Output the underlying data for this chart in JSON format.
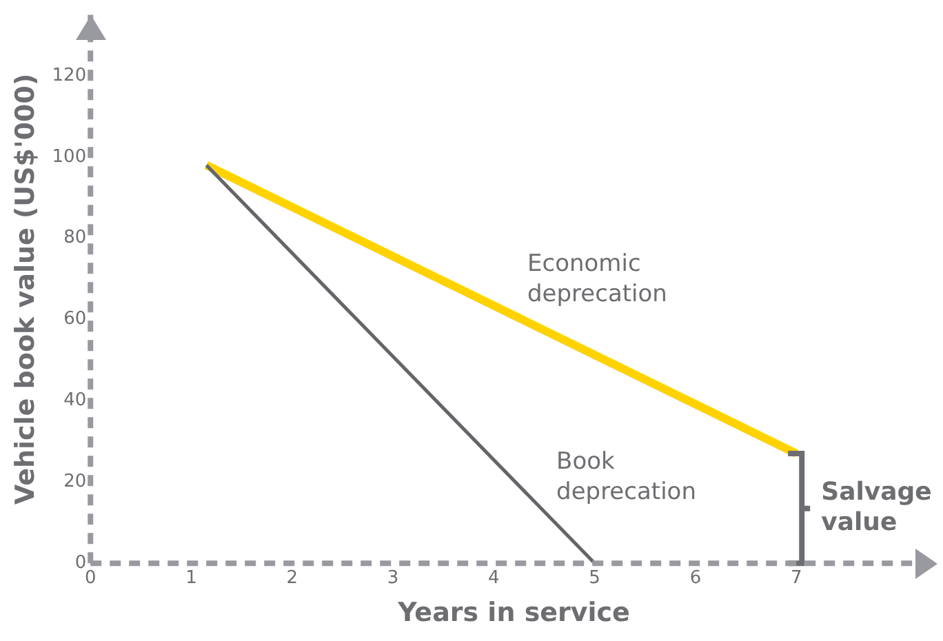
{
  "chart_data": {
    "type": "line",
    "xlabel": "Years in service",
    "ylabel": "Vehicle book value (US$'000)",
    "xlim": [
      0,
      8.4
    ],
    "xticks": [
      0,
      1,
      2,
      3,
      4,
      5,
      6,
      7
    ],
    "ylim": [
      0,
      135
    ],
    "yticks": [
      0,
      20,
      40,
      60,
      80,
      100,
      120
    ],
    "grid": false,
    "legend": false,
    "marker": "none",
    "line_style": "solid",
    "series": [
      {
        "name": "Economic deprecation",
        "color": "#ffd200",
        "x": [
          1.15,
          7
        ],
        "values": [
          98,
          27
        ]
      },
      {
        "name": "Book deprecation",
        "color": "#646469",
        "x": [
          1.15,
          5
        ],
        "values": [
          98,
          0
        ]
      }
    ],
    "annotations": [
      "Salvage value"
    ]
  }
}
